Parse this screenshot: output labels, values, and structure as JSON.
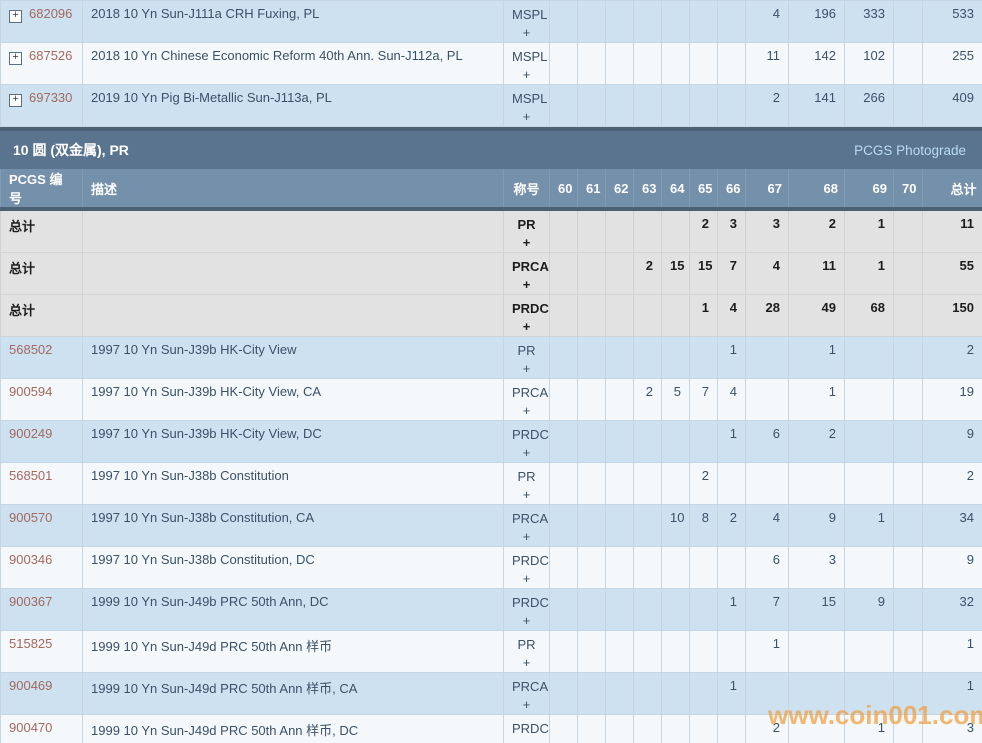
{
  "meta": {
    "plus": "+",
    "expand_icon": "+"
  },
  "top_table": {
    "rows": [
      {
        "pcgs": "682096",
        "desc": "2018 10 Yn Sun-J111a CRH Fuxing, PL",
        "designation": "MSPL",
        "cells": {
          "67": "4",
          "68": "196",
          "69": "333"
        },
        "total": "533"
      },
      {
        "pcgs": "687526",
        "desc": "2018 10 Yn Chinese Economic Reform 40th Ann. Sun-J112a, PL",
        "designation": "MSPL",
        "cells": {
          "67": "11",
          "68": "142",
          "69": "102"
        },
        "total": "255"
      },
      {
        "pcgs": "697330",
        "desc": "2019 10 Yn Pig Bi-Metallic Sun-J113a, PL",
        "designation": "MSPL",
        "cells": {
          "67": "2",
          "68": "141",
          "69": "266"
        },
        "total": "409"
      }
    ]
  },
  "section": {
    "title": "10 圆 (双金属), PR",
    "photograde_link": "PCGS Photograde"
  },
  "table": {
    "headers": {
      "pcgs": "PCGS 编号",
      "desc": "描述",
      "designation": "称号",
      "total": "总计"
    },
    "grade_columns": [
      "60",
      "61",
      "62",
      "63",
      "64",
      "65",
      "66",
      "67",
      "68",
      "69",
      "70"
    ],
    "total_rows": [
      {
        "label": "总计",
        "designation": "PR",
        "cells": {
          "65": "2",
          "66": "3",
          "67": "3",
          "68": "2",
          "69": "1"
        },
        "total": "11"
      },
      {
        "label": "总计",
        "designation": "PRCA",
        "cells": {
          "63": "2",
          "64": "15",
          "65": "15",
          "66": "7",
          "67": "4",
          "68": "11",
          "69": "1"
        },
        "total": "55"
      },
      {
        "label": "总计",
        "designation": "PRDC",
        "cells": {
          "65": "1",
          "66": "4",
          "67": "28",
          "68": "49",
          "69": "68"
        },
        "total": "150"
      }
    ],
    "rows": [
      {
        "pcgs": "568502",
        "desc": "1997 10 Yn Sun-J39b HK-City View",
        "designation": "PR",
        "cells": {
          "66": "1",
          "68": "1"
        },
        "total": "2"
      },
      {
        "pcgs": "900594",
        "desc": "1997 10 Yn Sun-J39b HK-City View, CA",
        "designation": "PRCA",
        "cells": {
          "63": "2",
          "64": "5",
          "65": "7",
          "66": "4",
          "68": "1"
        },
        "total": "19"
      },
      {
        "pcgs": "900249",
        "desc": "1997 10 Yn Sun-J39b HK-City View, DC",
        "designation": "PRDC",
        "cells": {
          "66": "1",
          "67": "6",
          "68": "2"
        },
        "total": "9"
      },
      {
        "pcgs": "568501",
        "desc": "1997 10 Yn Sun-J38b Constitution",
        "designation": "PR",
        "cells": {
          "65": "2"
        },
        "total": "2"
      },
      {
        "pcgs": "900570",
        "desc": "1997 10 Yn Sun-J38b Constitution, CA",
        "designation": "PRCA",
        "cells": {
          "64": "10",
          "65": "8",
          "66": "2",
          "67": "4",
          "68": "9",
          "69": "1"
        },
        "total": "34"
      },
      {
        "pcgs": "900346",
        "desc": "1997 10 Yn Sun-J38b Constitution, DC",
        "designation": "PRDC",
        "cells": {
          "67": "6",
          "68": "3"
        },
        "total": "9"
      },
      {
        "pcgs": "900367",
        "desc": "1999 10 Yn Sun-J49b PRC 50th Ann, DC",
        "designation": "PRDC",
        "cells": {
          "66": "1",
          "67": "7",
          "68": "15",
          "69": "9"
        },
        "total": "32"
      },
      {
        "pcgs": "515825",
        "desc": "1999 10 Yn Sun-J49d PRC 50th Ann 样币",
        "designation": "PR",
        "cells": {
          "67": "1"
        },
        "total": "1"
      },
      {
        "pcgs": "900469",
        "desc": "1999 10 Yn Sun-J49d PRC 50th Ann 样币, CA",
        "designation": "PRCA",
        "cells": {
          "66": "1"
        },
        "total": "1"
      },
      {
        "pcgs": "900470",
        "desc": "1999 10 Yn Sun-J49d PRC 50th Ann 样币, DC",
        "designation": "PRDC",
        "cells": {
          "67": "2",
          "69": "1"
        },
        "total": "3"
      }
    ]
  },
  "watermark": "www.coin001.com",
  "colors": {
    "section_bar": "#5a7490",
    "header_row": "#7490ab",
    "divider": "#4d6175",
    "row_blue": "#cde1f1",
    "row_light": "#f4f8fb",
    "row_total": "#e2e2e2",
    "link": "#a2695e",
    "photograde_link": "#badbf2",
    "watermark": "#f09e3c"
  }
}
